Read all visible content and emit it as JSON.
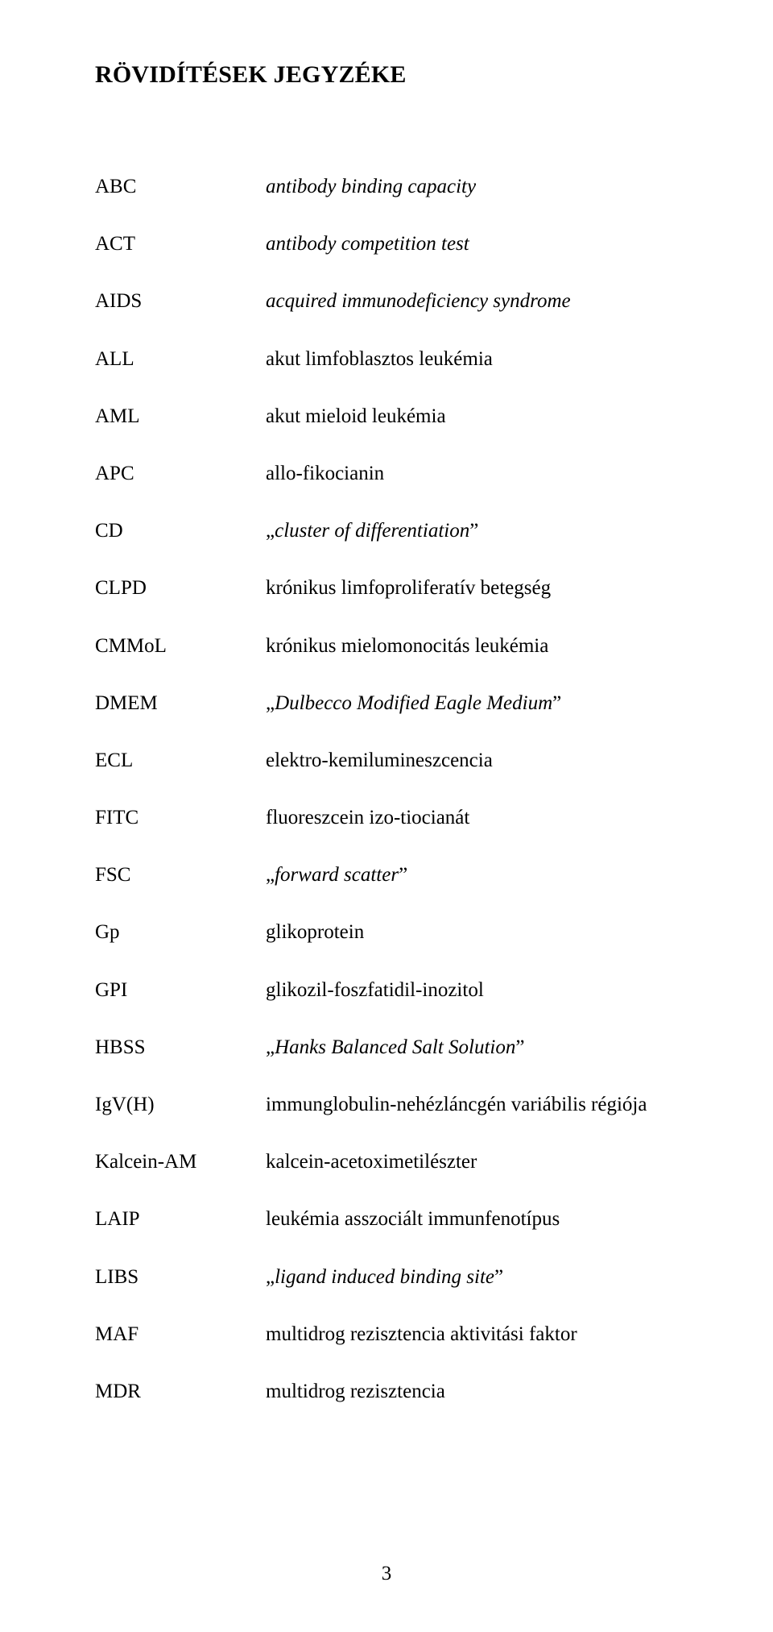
{
  "title": "RÖVIDÍTÉSEK JEGYZÉKE",
  "page_number": "3",
  "entries": [
    {
      "abbr": "ABC",
      "def_parts": [
        {
          "t": "antibody binding capacity",
          "i": true
        }
      ]
    },
    {
      "abbr": "ACT",
      "def_parts": [
        {
          "t": "antibody competition test",
          "i": true
        }
      ]
    },
    {
      "abbr": "AIDS",
      "def_parts": [
        {
          "t": "acquired immunodeficiency syndrome",
          "i": true
        }
      ]
    },
    {
      "abbr": "ALL",
      "def_parts": [
        {
          "t": "akut limfoblasztos leukémia",
          "i": false
        }
      ]
    },
    {
      "abbr": "AML",
      "def_parts": [
        {
          "t": "akut mieloid leukémia",
          "i": false
        }
      ]
    },
    {
      "abbr": "APC",
      "def_parts": [
        {
          "t": "allo-fikocianin",
          "i": false
        }
      ]
    },
    {
      "abbr": "CD",
      "def_parts": [
        {
          "t": "„",
          "i": false
        },
        {
          "t": "cluster of differentiation",
          "i": true
        },
        {
          "t": "”",
          "i": false
        }
      ]
    },
    {
      "abbr": "CLPD",
      "def_parts": [
        {
          "t": "krónikus limfoproliferatív betegség",
          "i": false
        }
      ]
    },
    {
      "abbr": "CMMoL",
      "def_parts": [
        {
          "t": "krónikus mielomonocitás leukémia",
          "i": false
        }
      ]
    },
    {
      "abbr": "DMEM",
      "def_parts": [
        {
          "t": "„",
          "i": false
        },
        {
          "t": "Dulbecco Modified Eagle Medium",
          "i": true
        },
        {
          "t": "”",
          "i": false
        }
      ]
    },
    {
      "abbr": "ECL",
      "def_parts": [
        {
          "t": "elektro-kemilumineszcencia",
          "i": false
        }
      ]
    },
    {
      "abbr": "FITC",
      "def_parts": [
        {
          "t": "fluoreszcein izo-tiocianát",
          "i": false
        }
      ]
    },
    {
      "abbr": "FSC",
      "def_parts": [
        {
          "t": "„",
          "i": false
        },
        {
          "t": "forward scatter",
          "i": true
        },
        {
          "t": "”",
          "i": false
        }
      ]
    },
    {
      "abbr": "Gp",
      "def_parts": [
        {
          "t": "glikoprotein",
          "i": false
        }
      ]
    },
    {
      "abbr": "GPI",
      "def_parts": [
        {
          "t": "glikozil-foszfatidil-inozitol",
          "i": false
        }
      ]
    },
    {
      "abbr": "HBSS",
      "def_parts": [
        {
          "t": "„",
          "i": false
        },
        {
          "t": "Hanks Balanced Salt Solution",
          "i": true
        },
        {
          "t": "”",
          "i": false
        }
      ]
    },
    {
      "abbr": "IgV(H)",
      "def_parts": [
        {
          "t": "immunglobulin-nehézláncgén variábilis régiója",
          "i": false
        }
      ]
    },
    {
      "abbr": "Kalcein-AM",
      "def_parts": [
        {
          "t": "kalcein-acetoximetilészter",
          "i": false
        }
      ]
    },
    {
      "abbr": "LAIP",
      "def_parts": [
        {
          "t": "leukémia asszociált immunfenotípus",
          "i": false
        }
      ]
    },
    {
      "abbr": "LIBS",
      "def_parts": [
        {
          "t": "„",
          "i": false
        },
        {
          "t": "ligand induced binding site",
          "i": true
        },
        {
          "t": "”",
          "i": false
        }
      ]
    },
    {
      "abbr": "MAF",
      "def_parts": [
        {
          "t": "multidrog rezisztencia aktivitási faktor",
          "i": false
        }
      ]
    },
    {
      "abbr": "MDR",
      "def_parts": [
        {
          "t": "multidrog rezisztencia",
          "i": false
        }
      ]
    }
  ]
}
